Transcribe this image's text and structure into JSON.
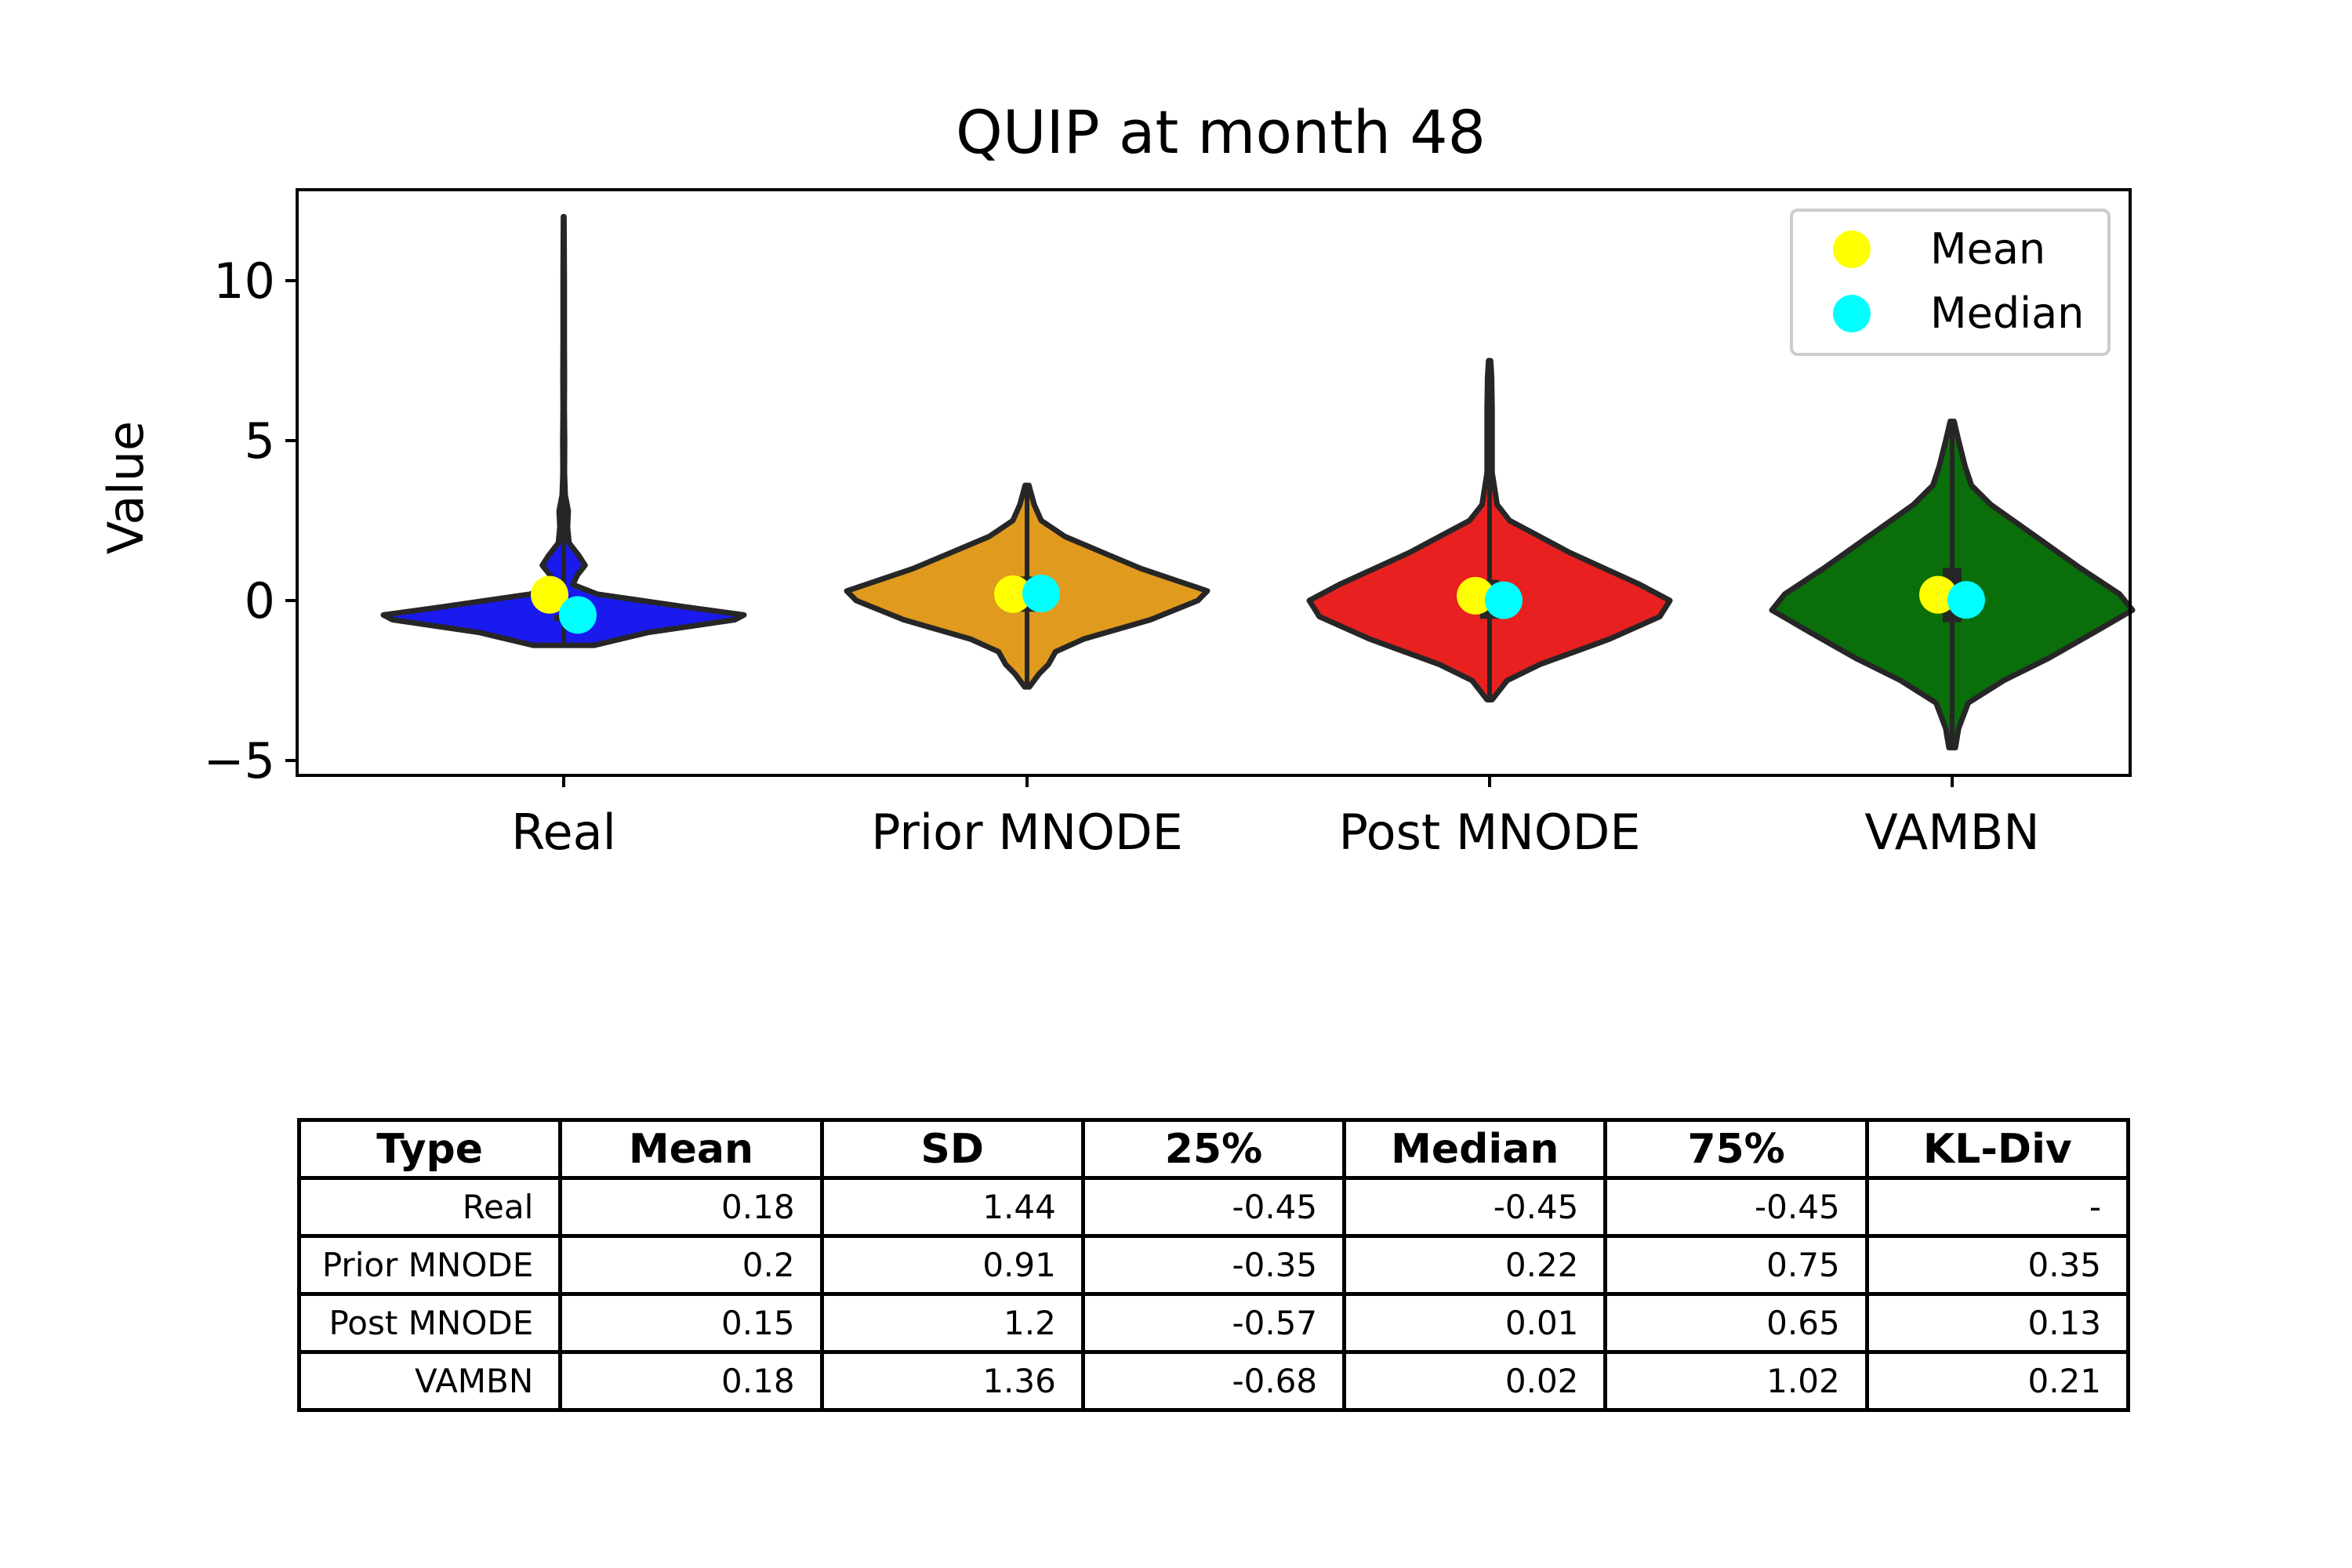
{
  "chart_data": {
    "type": "violin",
    "title": "QUIP at month 48",
    "xlabel": "",
    "ylabel": "Value",
    "ylim": [
      -5.5,
      12.8
    ],
    "yticks": [
      -5,
      0,
      5,
      10
    ],
    "ytick_labels": [
      "−5",
      "0",
      "5",
      "10"
    ],
    "categories": [
      "Real",
      "Prior MNODE",
      "Post MNODE",
      "VAMBN"
    ],
    "colors": [
      "#1a1aee",
      "#e09a1e",
      "#e82020",
      "#0a6e0a"
    ],
    "series": [
      {
        "category": "Real",
        "mean": 0.18,
        "median": -0.45,
        "q1": -0.45,
        "q3": -0.45,
        "range": [
          -1.4,
          12.0
        ],
        "density": [
          [
            -1.4,
            2.0
          ],
          [
            -1.0,
            5.5
          ],
          [
            -0.6,
            11.2
          ],
          [
            -0.45,
            11.8
          ],
          [
            -0.2,
            8.0
          ],
          [
            0.2,
            2.2
          ],
          [
            0.5,
            0.6
          ],
          [
            0.8,
            0.9
          ],
          [
            1.1,
            1.4
          ],
          [
            1.4,
            1.0
          ],
          [
            1.8,
            0.35
          ],
          [
            2.3,
            0.25
          ],
          [
            2.8,
            0.3
          ],
          [
            3.3,
            0.1
          ],
          [
            4.0,
            0.05
          ],
          [
            5.0,
            0.06
          ],
          [
            6.0,
            0.04
          ],
          [
            7.0,
            0.05
          ],
          [
            8.0,
            0.04
          ],
          [
            9.0,
            0.04
          ],
          [
            10.0,
            0.04
          ],
          [
            11.0,
            0.03
          ],
          [
            12.0,
            0.02
          ]
        ]
      },
      {
        "category": "Prior MNODE",
        "mean": 0.2,
        "median": 0.22,
        "q1": -0.35,
        "q3": 0.75,
        "range": [
          -2.7,
          3.6
        ],
        "density": [
          [
            -2.7,
            0.05
          ],
          [
            -2.3,
            0.25
          ],
          [
            -2.0,
            0.45
          ],
          [
            -1.6,
            0.6
          ],
          [
            -1.2,
            1.2
          ],
          [
            -0.6,
            2.6
          ],
          [
            0.0,
            3.6
          ],
          [
            0.3,
            3.8
          ],
          [
            0.6,
            3.2
          ],
          [
            1.0,
            2.4
          ],
          [
            1.5,
            1.6
          ],
          [
            2.0,
            0.8
          ],
          [
            2.5,
            0.3
          ],
          [
            3.0,
            0.15
          ],
          [
            3.6,
            0.04
          ]
        ]
      },
      {
        "category": "Post MNODE",
        "mean": 0.15,
        "median": 0.01,
        "q1": -0.57,
        "q3": 0.65,
        "range": [
          -3.1,
          7.5
        ],
        "density": [
          [
            -3.1,
            0.05
          ],
          [
            -2.5,
            0.35
          ],
          [
            -2.0,
            1.0
          ],
          [
            -1.2,
            2.4
          ],
          [
            -0.5,
            3.4
          ],
          [
            0.0,
            3.6
          ],
          [
            0.5,
            3.0
          ],
          [
            1.0,
            2.3
          ],
          [
            1.5,
            1.6
          ],
          [
            2.0,
            1.0
          ],
          [
            2.5,
            0.4
          ],
          [
            3.0,
            0.15
          ],
          [
            4.0,
            0.05
          ],
          [
            5.0,
            0.05
          ],
          [
            6.0,
            0.05
          ],
          [
            7.0,
            0.04
          ],
          [
            7.5,
            0.02
          ]
        ]
      },
      {
        "category": "VAMBN",
        "mean": 0.18,
        "median": 0.02,
        "q1": -0.68,
        "q3": 1.02,
        "range": [
          -4.6,
          5.6
        ],
        "density": [
          [
            -4.6,
            0.05
          ],
          [
            -4.0,
            0.1
          ],
          [
            -3.2,
            0.25
          ],
          [
            -2.5,
            0.8
          ],
          [
            -1.8,
            1.5
          ],
          [
            -1.0,
            2.2
          ],
          [
            -0.3,
            2.8
          ],
          [
            0.2,
            2.6
          ],
          [
            1.0,
            2.0
          ],
          [
            2.0,
            1.3
          ],
          [
            3.0,
            0.6
          ],
          [
            3.6,
            0.3
          ],
          [
            4.2,
            0.2
          ],
          [
            5.0,
            0.1
          ],
          [
            5.6,
            0.03
          ]
        ]
      }
    ],
    "legend": {
      "placement": "top-right",
      "entries": [
        {
          "label": "Mean",
          "color": "#ffff00"
        },
        {
          "label": "Median",
          "color": "#00ffff"
        }
      ]
    },
    "grid": false
  },
  "table": {
    "headers": [
      "Type",
      "Mean",
      "SD",
      "25%",
      "Median",
      "75%",
      "KL-Div"
    ],
    "rows": [
      [
        "Real",
        "0.18",
        "1.44",
        "-0.45",
        "-0.45",
        "-0.45",
        "-"
      ],
      [
        "Prior MNODE",
        "0.2",
        "0.91",
        "-0.35",
        "0.22",
        "0.75",
        "0.35"
      ],
      [
        "Post MNODE",
        "0.15",
        "1.2",
        "-0.57",
        "0.01",
        "0.65",
        "0.13"
      ],
      [
        "VAMBN",
        "0.18",
        "1.36",
        "-0.68",
        "0.02",
        "1.02",
        "0.21"
      ]
    ]
  }
}
